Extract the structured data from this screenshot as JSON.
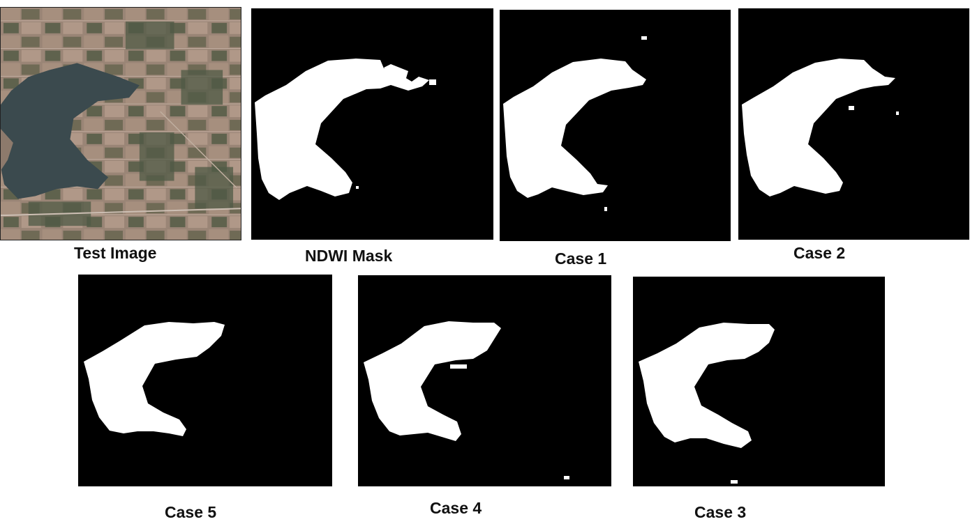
{
  "figure": {
    "panels": [
      {
        "id": "test",
        "caption": "Test Image"
      },
      {
        "id": "ndwi",
        "caption": "NDWI Mask"
      },
      {
        "id": "case1",
        "caption": "Case 1"
      },
      {
        "id": "case2",
        "caption": "Case 2"
      },
      {
        "id": "case5",
        "caption": "Case 5"
      },
      {
        "id": "case4",
        "caption": "Case 4"
      },
      {
        "id": "case3",
        "caption": "Case 3"
      }
    ],
    "colors": {
      "mask_background": "#000000",
      "water_mask": "#ffffff",
      "lake_water": "#3b4a4e",
      "terrain": "#8d7a6c"
    }
  }
}
